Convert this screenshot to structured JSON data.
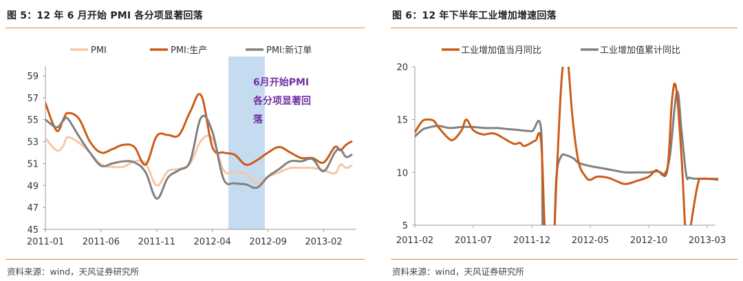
{
  "left": {
    "title": "图 5：12 年 6 月开始 PMI 各分项显著回落",
    "source": "资料来源：wind，天风证券研究所"
  },
  "right": {
    "title": "图 6：12 年下半年工业增加增速回落",
    "source": "资料来源：wind，天风证券研究所"
  },
  "colors": {
    "orange_dark": "#cc5b17",
    "orange_light": "#f6c6a5",
    "gray": "#808080",
    "highlight": "#c5dbf0",
    "annotation": "#7030a0",
    "rule": "#e0833a"
  },
  "chart_data": [
    {
      "type": "line",
      "x_start": "2011-01",
      "x_end": "2013-04",
      "xticks": [
        "2011-01",
        "2011-06",
        "2011-11",
        "2012-04",
        "2012-09",
        "2013-02"
      ],
      "yticks": [
        "45",
        "47",
        "49",
        "51",
        "53",
        "55",
        "57",
        "59"
      ],
      "ylim": [
        45,
        60
      ],
      "legend_position": "top",
      "highlight_span": [
        "2012-06",
        "2012-09"
      ],
      "annotation": [
        "6月开始PMI",
        "各分项显著回",
        "落"
      ],
      "series": [
        {
          "name": "PMI",
          "color": "#f6c6a5",
          "values": [
            [
              0,
              53.3
            ],
            [
              1,
              52.2
            ],
            [
              1.6,
              52.6
            ],
            [
              2,
              53.4
            ],
            [
              3,
              52.9
            ],
            [
              4,
              52.0
            ],
            [
              5,
              50.9
            ],
            [
              6,
              50.7
            ],
            [
              7,
              50.7
            ],
            [
              8,
              51.2
            ],
            [
              9,
              51.0
            ],
            [
              10,
              49.0
            ],
            [
              11,
              50.3
            ],
            [
              12,
              50.5
            ],
            [
              13,
              51.0
            ],
            [
              14,
              53.1
            ],
            [
              15,
              53.3
            ],
            [
              16,
              50.4
            ],
            [
              17,
              50.2
            ],
            [
              18,
              50.1
            ],
            [
              19,
              49.2
            ],
            [
              20,
              49.8
            ],
            [
              21,
              50.2
            ],
            [
              22,
              50.6
            ],
            [
              23,
              50.6
            ],
            [
              24,
              50.6
            ],
            [
              25,
              50.4
            ],
            [
              26,
              50.1
            ],
            [
              26.5,
              50.9
            ],
            [
              27,
              50.6
            ],
            [
              27.5,
              50.8
            ]
          ]
        },
        {
          "name": "PMI:生产",
          "color": "#cc5b17",
          "values": [
            [
              0,
              56.5
            ],
            [
              1,
              54.0
            ],
            [
              1.6,
              55.0
            ],
            [
              2,
              55.6
            ],
            [
              3,
              55.1
            ],
            [
              4,
              53.0
            ],
            [
              5,
              52.0
            ],
            [
              6,
              52.3
            ],
            [
              7,
              52.7
            ],
            [
              8,
              52.5
            ],
            [
              9,
              50.9
            ],
            [
              10,
              53.5
            ],
            [
              11,
              53.6
            ],
            [
              12,
              53.6
            ],
            [
              13,
              55.7
            ],
            [
              14,
              57.2
            ],
            [
              15,
              52.5
            ],
            [
              16,
              52.0
            ],
            [
              17,
              51.8
            ],
            [
              18,
              50.9
            ],
            [
              19,
              51.3
            ],
            [
              20,
              52.0
            ],
            [
              21,
              52.5
            ],
            [
              22,
              52.0
            ],
            [
              23,
              51.5
            ],
            [
              24,
              51.5
            ],
            [
              25,
              51.1
            ],
            [
              26,
              52.5
            ],
            [
              26.5,
              52.2
            ],
            [
              27,
              52.7
            ],
            [
              27.5,
              53.0
            ]
          ]
        },
        {
          "name": "PMI:新订单",
          "color": "#808080",
          "values": [
            [
              0,
              55.0
            ],
            [
              1,
              54.3
            ],
            [
              1.6,
              54.9
            ],
            [
              2,
              55.1
            ],
            [
              3,
              53.5
            ],
            [
              4,
              52.0
            ],
            [
              5,
              50.8
            ],
            [
              6,
              51.0
            ],
            [
              7,
              51.2
            ],
            [
              8,
              51.1
            ],
            [
              9,
              50.2
            ],
            [
              10,
              47.8
            ],
            [
              11,
              49.7
            ],
            [
              12,
              50.4
            ],
            [
              13,
              51.2
            ],
            [
              14,
              55.2
            ],
            [
              15,
              53.9
            ],
            [
              16,
              49.6
            ],
            [
              17,
              49.2
            ],
            [
              18,
              49.1
            ],
            [
              19,
              48.8
            ],
            [
              20,
              49.8
            ],
            [
              21,
              50.5
            ],
            [
              22,
              51.2
            ],
            [
              23,
              51.2
            ],
            [
              24,
              51.4
            ],
            [
              25,
              50.3
            ],
            [
              26,
              52.0
            ],
            [
              26.5,
              52.3
            ],
            [
              27,
              51.6
            ],
            [
              27.5,
              51.8
            ]
          ]
        }
      ]
    },
    {
      "type": "line",
      "x_start": "2011-02",
      "x_end": "2013-04",
      "xticks": [
        "2011-02",
        "2011-07",
        "2011-12",
        "2012-05",
        "2012-10",
        "2013-03"
      ],
      "yticks": [
        "5",
        "10",
        "15",
        "20"
      ],
      "ylim": [
        5,
        20
      ],
      "legend_position": "top",
      "series": [
        {
          "name": "工业增加值当月同比",
          "color": "#cc5b17",
          "values": [
            [
              0,
              13.8
            ],
            [
              0.6,
              14.8
            ],
            [
              1,
              15.0
            ],
            [
              1.6,
              14.9
            ],
            [
              2,
              14.3
            ],
            [
              2.8,
              13.3
            ],
            [
              3.3,
              13.1
            ],
            [
              4,
              14.0
            ],
            [
              4.4,
              15.0
            ],
            [
              5,
              14.0
            ],
            [
              5.8,
              13.6
            ],
            [
              6.5,
              13.7
            ],
            [
              7,
              13.6
            ],
            [
              7.8,
              13.1
            ],
            [
              8.5,
              12.7
            ],
            [
              9,
              12.8
            ],
            [
              9.3,
              12.5
            ],
            [
              9.8,
              12.7
            ],
            [
              10.3,
              13.0
            ],
            [
              10.8,
              12.9
            ],
            [
              11.2,
              3.0
            ],
            [
              11.8,
              2.5
            ],
            [
              12.1,
              9.0
            ],
            [
              12.5,
              18.0
            ],
            [
              12.8,
              21.0
            ],
            [
              13.05,
              21.0
            ],
            [
              13.5,
              15.0
            ],
            [
              14,
              11.0
            ],
            [
              14.6,
              9.6
            ],
            [
              15,
              9.3
            ],
            [
              15.6,
              9.6
            ],
            [
              16.5,
              9.5
            ],
            [
              17.2,
              9.2
            ],
            [
              18,
              8.9
            ],
            [
              19,
              9.2
            ],
            [
              20,
              9.6
            ],
            [
              20.6,
              10.2
            ],
            [
              21,
              10.0
            ],
            [
              21.6,
              10.3
            ],
            [
              22,
              17.0
            ],
            [
              22.35,
              17.9
            ],
            [
              22.8,
              11.5
            ],
            [
              23.1,
              5.0
            ],
            [
              23.3,
              2.5
            ],
            [
              23.6,
              5.0
            ],
            [
              24.2,
              8.9
            ],
            [
              24.6,
              9.4
            ],
            [
              26,
              9.3
            ],
            [
              26.6,
              9.3
            ]
          ]
        },
        {
          "name": "工业增加值累计同比",
          "color": "#808080",
          "values": [
            [
              0,
              13.4
            ],
            [
              0.6,
              14.0
            ],
            [
              1,
              14.2
            ],
            [
              2,
              14.4
            ],
            [
              3,
              14.2
            ],
            [
              4,
              14.3
            ],
            [
              5,
              14.3
            ],
            [
              6,
              14.2
            ],
            [
              7,
              14.2
            ],
            [
              8,
              14.1
            ],
            [
              9,
              14.0
            ],
            [
              10,
              13.9
            ],
            [
              10.8,
              14.0
            ],
            [
              11,
              2.5
            ],
            [
              11.8,
              2.5
            ],
            [
              12.1,
              9.5
            ],
            [
              12.5,
              11.5
            ],
            [
              13,
              11.6
            ],
            [
              13.6,
              11.3
            ],
            [
              14,
              10.9
            ],
            [
              15,
              10.6
            ],
            [
              16,
              10.4
            ],
            [
              17,
              10.2
            ],
            [
              18,
              10.0
            ],
            [
              19,
              10.0
            ],
            [
              20,
              10.0
            ],
            [
              20.8,
              10.1
            ],
            [
              21.3,
              9.8
            ],
            [
              21.8,
              11.5
            ],
            [
              22.4,
              17.6
            ],
            [
              22.8,
              14.0
            ],
            [
              23.2,
              9.8
            ],
            [
              23.5,
              9.5
            ],
            [
              24.3,
              9.4
            ],
            [
              26.6,
              9.4
            ]
          ]
        }
      ]
    }
  ]
}
